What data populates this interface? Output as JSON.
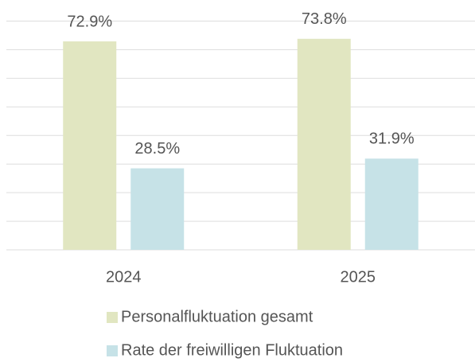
{
  "chart_data": {
    "type": "bar",
    "categories": [
      "2024",
      "2025"
    ],
    "series": [
      {
        "name": "Personalfluktuation gesamt",
        "color": "#e1e6c1",
        "values": [
          72.9,
          73.8
        ],
        "value_labels": [
          "72.9%",
          "73.8%"
        ]
      },
      {
        "name": "Rate der freiwilligen Fluktuation",
        "color": "#c6e2e7",
        "values": [
          28.5,
          31.9
        ],
        "value_labels": [
          "28.5%",
          "31.9%"
        ]
      }
    ],
    "ylim": [
      0,
      80
    ],
    "yticks": [
      0,
      10,
      20,
      30,
      40,
      50,
      60,
      70,
      80
    ],
    "grid": true,
    "legend": "bottom"
  }
}
